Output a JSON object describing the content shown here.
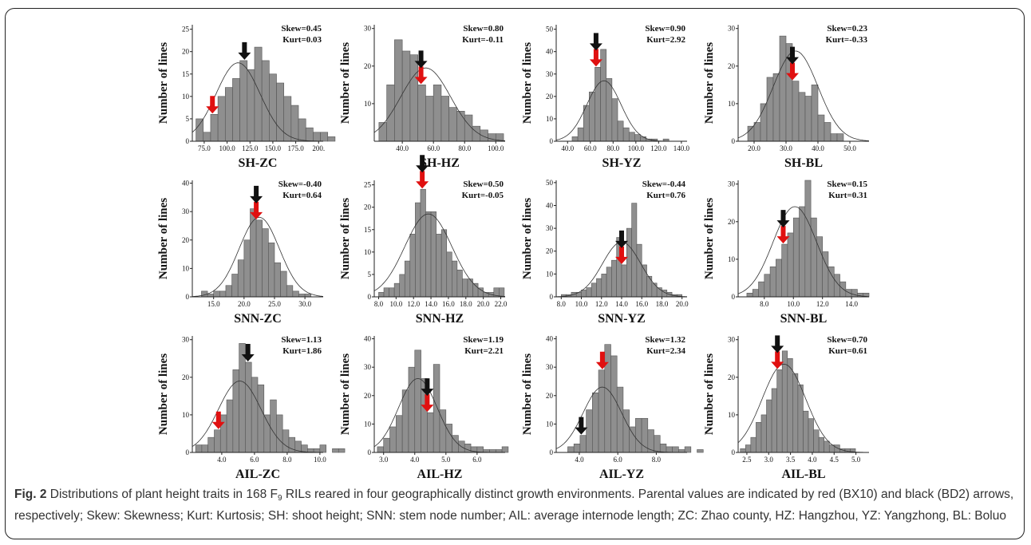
{
  "caption": {
    "label": "Fig. 2",
    "text_before_sub": " Distributions of plant height traits in 168 F",
    "sub": "9",
    "text_after_sub": " RILs reared in four geographically distinct growth environments. Parental values are indicated by red (BX10) and black (BD2) arrows, respectively; Skew: Skewness; Kurt: Kurtosis; SH: shoot height; SNN: stem node number; AIL: average internode length; ZC: Zhao county, HZ: Hangzhou, YZ: Yangzhong, BL: Boluo"
  },
  "colors": {
    "bar": "#8f8f8f",
    "bar_edge": "#555555",
    "red_arrow": "#e01010",
    "black_arrow": "#111111",
    "curve": "#333333"
  },
  "ylabel_common": "Number of lines",
  "chart_data": [
    {
      "type": "bar",
      "title": "SH-ZC",
      "ylabel": "Number of lines",
      "skew": "Skew=0.45",
      "kurt": "Kurt=0.03",
      "x_ticks": [
        "75.0",
        "100.0",
        "125.0",
        "150.0",
        "175.0",
        "200."
      ],
      "x_tick_values": [
        75,
        100,
        125,
        150,
        175,
        200
      ],
      "xlim": [
        62,
        205
      ],
      "y_ticks": [
        "0",
        "5",
        "10",
        "15",
        "20",
        "25"
      ],
      "y_tick_values": [
        0,
        5,
        10,
        15,
        20,
        25
      ],
      "ylim": [
        0,
        26
      ],
      "bin_start": 66,
      "bin_width": 8,
      "values": [
        5,
        2,
        6,
        10,
        12,
        14,
        18,
        16,
        21,
        18,
        15,
        13,
        10,
        8,
        5,
        3,
        2,
        2,
        1
      ],
      "red_arrow_x": 84,
      "black_arrow_x": 119,
      "curve_mean": 112,
      "curve_sd": 24,
      "curve_peak": 17.5
    },
    {
      "type": "bar",
      "title": "SH-HZ",
      "ylabel": "Number of lines",
      "skew": "Skew=0.80",
      "kurt": "Kurt=-0.11",
      "x_ticks": [
        "40.0",
        "60.0",
        "80.0",
        "100.0"
      ],
      "x_tick_values": [
        40,
        60,
        80,
        100
      ],
      "xlim": [
        22,
        106
      ],
      "y_ticks": [
        "10",
        "20",
        "30"
      ],
      "y_tick_values": [
        10,
        20,
        30
      ],
      "ylim": [
        0,
        31
      ],
      "bin_start": 25,
      "bin_width": 5,
      "values": [
        5,
        15,
        27,
        24,
        23,
        15,
        12,
        15,
        12,
        9,
        8,
        7,
        4,
        3,
        2,
        2
      ],
      "red_arrow_x": 52,
      "black_arrow_x": 52,
      "curve_mean": 55,
      "curve_sd": 16,
      "curve_peak": 19.5
    },
    {
      "type": "bar",
      "title": "SH-YZ",
      "ylabel": "Number of lines",
      "skew": "Skew=0.90",
      "kurt": "Kurt=2.92",
      "x_ticks": [
        "40.0",
        "60.0",
        "80.0",
        "100.0",
        "120.0",
        "140.0"
      ],
      "x_tick_values": [
        40,
        60,
        80,
        100,
        120,
        140
      ],
      "xlim": [
        30,
        145
      ],
      "y_ticks": [
        "0",
        "10",
        "20",
        "30",
        "40",
        "50"
      ],
      "y_tick_values": [
        0,
        10,
        20,
        30,
        40,
        50
      ],
      "ylim": [
        0,
        52
      ],
      "bin_start": 44,
      "bin_width": 5,
      "values": [
        2,
        6,
        16,
        22,
        33,
        41,
        28,
        19,
        9,
        6,
        4,
        3,
        2,
        1,
        1,
        0,
        1
      ],
      "red_arrow_x": 65,
      "black_arrow_x": 58,
      "curve_mean": 72,
      "curve_sd": 15,
      "curve_peak": 27
    },
    {
      "type": "bar",
      "title": "SH-BL",
      "ylabel": "Number of lines",
      "skew": "Skew=0.23",
      "kurt": "Kurt=-0.33",
      "x_ticks": [
        "20.0",
        "30.0",
        "40.0",
        "50.0"
      ],
      "x_tick_values": [
        20,
        30,
        40,
        50
      ],
      "xlim": [
        15,
        56
      ],
      "y_ticks": [
        "0",
        "10",
        "20",
        "30"
      ],
      "y_tick_values": [
        0,
        10,
        20,
        30
      ],
      "ylim": [
        0,
        31
      ],
      "bin_start": 18,
      "bin_width": 2,
      "values": [
        4,
        5,
        10,
        17,
        18,
        28,
        26,
        16,
        13,
        12,
        15,
        7,
        5,
        2,
        2
      ],
      "red_arrow_x": 32,
      "black_arrow_x": 32,
      "curve_mean": 33,
      "curve_sd": 7,
      "curve_peak": 24
    },
    {
      "type": "bar",
      "title": "SNN-ZC",
      "ylabel": "Number of lines",
      "skew": "Skew=-0.40",
      "kurt": "Kurt=0.64",
      "x_ticks": [
        "15.0",
        "20.0",
        "25.0",
        "30.0"
      ],
      "x_tick_values": [
        15,
        20,
        25,
        30
      ],
      "xlim": [
        11.5,
        33
      ],
      "y_ticks": [
        "0",
        "10",
        "20",
        "30",
        "40"
      ],
      "y_tick_values": [
        0,
        10,
        20,
        30,
        40
      ],
      "ylim": [
        0,
        41
      ],
      "bin_start": 13,
      "bin_width": 1,
      "values": [
        2,
        1,
        2,
        2,
        4,
        8,
        13,
        20,
        31,
        27,
        24,
        19,
        12,
        9,
        4,
        2,
        1,
        1
      ],
      "red_arrow_x": 22,
      "black_arrow_x": 22,
      "curve_mean": 22.5,
      "curve_sd": 3.3,
      "curve_peak": 28
    },
    {
      "type": "bar",
      "title": "SNN-HZ",
      "ylabel": "Number of lines",
      "skew": "Skew=0.50",
      "kurt": "Kurt=-0.05",
      "x_ticks": [
        "8.0",
        "10.0",
        "12.0",
        "14.0",
        "16.0",
        "18.0",
        "20.0",
        "22.0"
      ],
      "x_tick_values": [
        8,
        10,
        12,
        14,
        16,
        18,
        20,
        22
      ],
      "xlim": [
        7.5,
        22.5
      ],
      "y_ticks": [
        "0",
        "5",
        "10",
        "15",
        "20",
        "25"
      ],
      "y_tick_values": [
        0,
        5,
        10,
        15,
        20,
        25
      ],
      "ylim": [
        0,
        26
      ],
      "bin_start": 8,
      "bin_width": 0.6,
      "values": [
        1,
        2,
        2,
        3,
        5,
        8,
        14,
        21,
        24,
        19,
        19,
        14,
        15,
        10,
        8,
        6,
        4,
        4,
        3,
        2,
        1,
        1,
        2,
        2
      ],
      "red_arrow_x": 13,
      "black_arrow_x": 13,
      "curve_mean": 13.7,
      "curve_sd": 2.7,
      "curve_peak": 18.5
    },
    {
      "type": "bar",
      "title": "SNN-YZ",
      "ylabel": "Number of lines",
      "skew": "Skew=-0.44",
      "kurt": "Kurt=0.76",
      "x_ticks": [
        "8.0",
        "10.0",
        "12.0",
        "14.0",
        "16.0",
        "18.0",
        "20.0"
      ],
      "x_tick_values": [
        8,
        10,
        12,
        14,
        16,
        18,
        20
      ],
      "xlim": [
        7.5,
        20.5
      ],
      "y_ticks": [
        "0",
        "10",
        "20",
        "30",
        "40",
        "50"
      ],
      "y_tick_values": [
        0,
        10,
        20,
        30,
        40,
        50
      ],
      "ylim": [
        0,
        51
      ],
      "bin_start": 8,
      "bin_width": 0.5,
      "values": [
        1,
        1,
        2,
        2,
        3,
        4,
        6,
        8,
        10,
        13,
        16,
        26,
        14,
        30,
        41,
        23,
        14,
        9,
        6,
        4,
        3,
        2,
        1,
        1
      ],
      "red_arrow_x": 14,
      "black_arrow_x": 13.5,
      "curve_mean": 14,
      "curve_sd": 1.9,
      "curve_peak": 24
    },
    {
      "type": "bar",
      "title": "SNN-BL",
      "ylabel": "Number of lines",
      "skew": "Skew=0.15",
      "kurt": "Kurt=0.31",
      "x_ticks": [
        "8.0",
        "10.0",
        "12.0",
        "14.0"
      ],
      "x_tick_values": [
        8,
        10,
        12,
        14
      ],
      "xlim": [
        6.2,
        15.2
      ],
      "y_ticks": [
        "0",
        "10",
        "20",
        "30"
      ],
      "y_tick_values": [
        0,
        10,
        20,
        30
      ],
      "ylim": [
        0,
        31
      ],
      "bin_start": 6.8,
      "bin_width": 0.4,
      "values": [
        1,
        2,
        4,
        6,
        8,
        10,
        14,
        17,
        21,
        24,
        31,
        21,
        16,
        12,
        8,
        6,
        4,
        2,
        2,
        1,
        1
      ],
      "red_arrow_x": 9.3,
      "black_arrow_x": 9.9,
      "curve_mean": 10.1,
      "curve_sd": 1.5,
      "curve_peak": 24
    },
    {
      "type": "bar",
      "title": "AIL-ZC",
      "ylabel": "Number of lines",
      "skew": "Skew=1.13",
      "kurt": "Kurt=1.86",
      "x_ticks": [
        "4.0",
        "6.0",
        "8.0",
        "10.0"
      ],
      "x_tick_values": [
        4,
        6,
        8,
        10
      ],
      "xlim": [
        2.2,
        10.2
      ],
      "y_ticks": [
        "0",
        "10",
        "20",
        "30"
      ],
      "y_tick_values": [
        0,
        10,
        20,
        30
      ],
      "ylim": [
        0,
        31
      ],
      "bin_start": 2.4,
      "bin_width": 0.38,
      "values": [
        2,
        2,
        4,
        6,
        10,
        14,
        22,
        29,
        24,
        20,
        18,
        10,
        14,
        10,
        6,
        4,
        3,
        2,
        1,
        1,
        2,
        0,
        1,
        1
      ],
      "red_arrow_x": 3.8,
      "black_arrow_x": 5.6,
      "curve_mean": 5.1,
      "curve_sd": 1.3,
      "curve_peak": 19
    },
    {
      "type": "bar",
      "title": "AIL-HZ",
      "ylabel": "Number of lines",
      "skew": "Skew=1.19",
      "kurt": "Kurt=2.21",
      "x_ticks": [
        "3.0",
        "4.0",
        "5.0",
        "6.0"
      ],
      "x_tick_values": [
        3,
        4,
        5,
        6
      ],
      "xlim": [
        2.7,
        6.9
      ],
      "y_ticks": [
        "0",
        "10",
        "20",
        "30",
        "40"
      ],
      "y_tick_values": [
        0,
        10,
        20,
        30,
        40
      ],
      "ylim": [
        0,
        41
      ],
      "bin_start": 2.8,
      "bin_width": 0.2,
      "values": [
        2,
        5,
        9,
        13,
        22,
        30,
        36,
        26,
        14,
        31,
        15,
        10,
        6,
        4,
        3,
        2,
        2,
        1,
        1,
        1,
        2
      ],
      "red_arrow_x": 4.4,
      "black_arrow_x": 4.4,
      "curve_mean": 4.1,
      "curve_sd": 0.62,
      "curve_peak": 26
    },
    {
      "type": "bar",
      "title": "AIL-YZ",
      "ylabel": "Number of lines",
      "skew": "Skew=1.32",
      "kurt": "Kurt=2.34",
      "x_ticks": [
        "4.0",
        "6.0",
        "8.0"
      ],
      "x_tick_values": [
        4,
        6,
        8
      ],
      "xlim": [
        2.8,
        9.6
      ],
      "y_ticks": [
        "0",
        "10",
        "20",
        "30",
        "40"
      ],
      "y_tick_values": [
        0,
        10,
        20,
        30,
        40
      ],
      "ylim": [
        0,
        41
      ],
      "bin_start": 3.4,
      "bin_width": 0.32,
      "values": [
        2,
        3,
        6,
        15,
        21,
        29,
        38,
        34,
        23,
        15,
        9,
        12,
        12,
        8,
        6,
        3,
        2,
        2,
        1,
        2,
        0,
        1
      ],
      "red_arrow_x": 5.2,
      "black_arrow_x": 4.1,
      "curve_mean": 5.2,
      "curve_sd": 1.0,
      "curve_peak": 23
    },
    {
      "type": "bar",
      "title": "AIL-BL",
      "ylabel": "Number of lines",
      "skew": "Skew=0.70",
      "kurt": "Kurt=0.61",
      "x_ticks": [
        "2.5",
        "3.0",
        "3.5",
        "4.0",
        "4.5",
        "5.0"
      ],
      "x_tick_values": [
        2.5,
        3.0,
        3.5,
        4.0,
        4.5,
        5.0
      ],
      "xlim": [
        2.3,
        5.3
      ],
      "y_ticks": [
        "0",
        "10",
        "20",
        "30"
      ],
      "y_tick_values": [
        0,
        10,
        20,
        30
      ],
      "ylim": [
        0,
        31
      ],
      "bin_start": 2.35,
      "bin_width": 0.12,
      "values": [
        1,
        2,
        4,
        8,
        10,
        14,
        17,
        22,
        27,
        25,
        21,
        18,
        11,
        9,
        6,
        4,
        3,
        2,
        2,
        1,
        1,
        1
      ],
      "red_arrow_x": 3.2,
      "black_arrow_x": 3.4,
      "curve_mean": 3.35,
      "curve_sd": 0.5,
      "curve_peak": 23.5
    }
  ]
}
